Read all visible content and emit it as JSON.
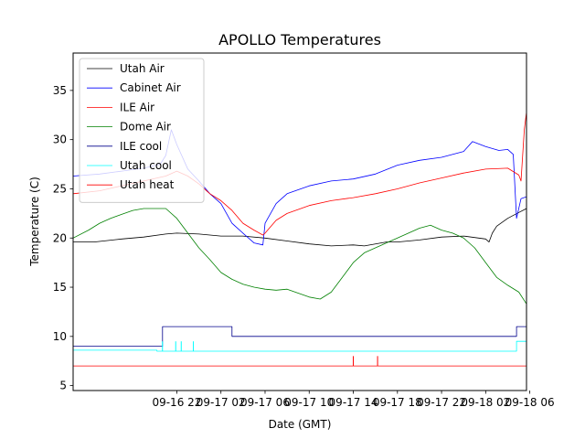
{
  "chart_data": {
    "type": "line",
    "title": "APOLLO Temperatures",
    "xlabel": "Date (GMT)",
    "ylabel": "Temperature (C)",
    "ylim": [
      4.5,
      38.8
    ],
    "xlim_hours": [
      -9.4,
      31.7
    ],
    "x_unit": "hours since 09-16 22:00 GMT",
    "y_ticks": [
      5,
      10,
      15,
      20,
      25,
      30,
      35
    ],
    "x_ticks": [
      {
        "label": "09-16 22",
        "h": 0
      },
      {
        "label": "09-17 02",
        "h": 4
      },
      {
        "label": "09-17 06",
        "h": 8
      },
      {
        "label": "09-17 10",
        "h": 12
      },
      {
        "label": "09-17 14",
        "h": 16
      },
      {
        "label": "09-17 18",
        "h": 20
      },
      {
        "label": "09-17 22",
        "h": 24
      },
      {
        "label": "09-18 02",
        "h": 28
      },
      {
        "label": "09-18 06",
        "h": 32
      }
    ],
    "legend_position": "top-left",
    "series": [
      {
        "name": "Utah Air",
        "color": "#000000",
        "x": [
          -9.4,
          -7.5,
          -5,
          -3,
          -1,
          0,
          2,
          4,
          6,
          8,
          10,
          12,
          14,
          16,
          17,
          19,
          20,
          22,
          24,
          26,
          28,
          28.3,
          28.6,
          29,
          30,
          31,
          31.7
        ],
        "y": [
          19.6,
          19.6,
          19.9,
          20.1,
          20.4,
          20.5,
          20.4,
          20.2,
          20.2,
          20.0,
          19.7,
          19.4,
          19.2,
          19.3,
          19.2,
          19.6,
          19.6,
          19.8,
          20.1,
          20.2,
          19.9,
          19.6,
          20.5,
          21.2,
          22.0,
          22.6,
          23.0
        ]
      },
      {
        "name": "Cabinet Air",
        "color": "#0000ff",
        "x": [
          -9.4,
          -7,
          -5,
          -3,
          -1.5,
          -1,
          -0.5,
          0,
          1,
          2,
          3,
          4,
          5,
          6,
          7,
          7.8,
          8,
          9,
          10,
          12,
          14,
          16,
          18,
          20,
          22,
          24,
          26,
          26.8,
          28,
          29.2,
          30,
          30.5,
          30.8,
          31.2,
          31.7
        ],
        "y": [
          26.3,
          26.5,
          26.8,
          27.1,
          27.5,
          28.4,
          31.0,
          29.5,
          27.0,
          25.8,
          24.5,
          23.5,
          21.5,
          20.5,
          19.5,
          19.3,
          21.5,
          23.5,
          24.5,
          25.3,
          25.8,
          26.0,
          26.5,
          27.4,
          27.9,
          28.2,
          28.8,
          29.8,
          29.3,
          28.9,
          29.0,
          28.5,
          22.0,
          24.0,
          24.2
        ]
      },
      {
        "name": "ILE Air",
        "color": "#ff0000",
        "x": [
          -9.4,
          -7,
          -5,
          -3,
          -1,
          0,
          1,
          2,
          3,
          4,
          5,
          6,
          7,
          7.8,
          8,
          9,
          10,
          12,
          14,
          16,
          18,
          20,
          22,
          24,
          26,
          28,
          30,
          31,
          31.2,
          31.5,
          31.7
        ],
        "y": [
          24.5,
          24.8,
          25.3,
          25.8,
          26.3,
          26.8,
          26.3,
          25.5,
          24.5,
          23.8,
          22.8,
          21.5,
          20.8,
          20.3,
          20.5,
          21.8,
          22.5,
          23.3,
          23.8,
          24.1,
          24.5,
          25.0,
          25.6,
          26.1,
          26.6,
          27.0,
          27.1,
          26.4,
          25.8,
          31.0,
          32.8
        ]
      },
      {
        "name": "Dome Air",
        "color": "#008000",
        "x": [
          -9.4,
          -8,
          -7,
          -6,
          -5,
          -4,
          -3,
          -2,
          -1,
          0,
          1,
          2,
          3,
          4,
          5,
          6,
          7,
          8,
          9,
          10,
          11,
          12,
          13,
          14,
          15,
          16,
          17,
          18,
          19,
          20,
          21,
          22,
          23,
          24,
          25,
          26,
          27,
          28,
          29,
          30,
          31,
          31.7
        ],
        "y": [
          20.0,
          20.8,
          21.5,
          22.0,
          22.4,
          22.8,
          23.0,
          23.0,
          23.0,
          22.0,
          20.5,
          19.0,
          17.8,
          16.5,
          15.8,
          15.3,
          15.0,
          14.8,
          14.7,
          14.8,
          14.4,
          14.0,
          13.8,
          14.5,
          16.0,
          17.5,
          18.5,
          19.0,
          19.5,
          20.0,
          20.5,
          21.0,
          21.3,
          20.8,
          20.5,
          20.0,
          19.0,
          17.5,
          16.0,
          15.2,
          14.5,
          13.3
        ]
      },
      {
        "name": "ILE cool",
        "color": "#00008b",
        "x": [
          -9.4,
          -1.3,
          -1.3,
          5,
          5,
          30.8,
          30.8,
          31.7
        ],
        "y": [
          9.0,
          9.0,
          11.0,
          11.0,
          10.0,
          10.0,
          11.0,
          11.0
        ]
      },
      {
        "name": "Utah cool",
        "color": "#00ffff",
        "x": [
          -9.4,
          -1.8,
          -1.8,
          30.8,
          30.8,
          31.7
        ],
        "y": [
          8.6,
          8.6,
          8.5,
          8.5,
          9.5,
          9.5
        ]
      },
      {
        "name": "Utah heat",
        "color": "#ff0000",
        "x": [
          -9.4,
          31.7
        ],
        "y": [
          7.0,
          7.0
        ]
      }
    ],
    "spikes": [
      {
        "series": "Utah cool",
        "color": "#00ffff",
        "x": [
          -1.3,
          -0.1,
          0.4,
          1.5
        ],
        "from": 8.5,
        "to": 9.5
      },
      {
        "series": "Utah heat",
        "color": "#ff0000",
        "x": [
          16.0,
          18.2
        ],
        "from": 7.0,
        "to": 8.0
      }
    ]
  }
}
